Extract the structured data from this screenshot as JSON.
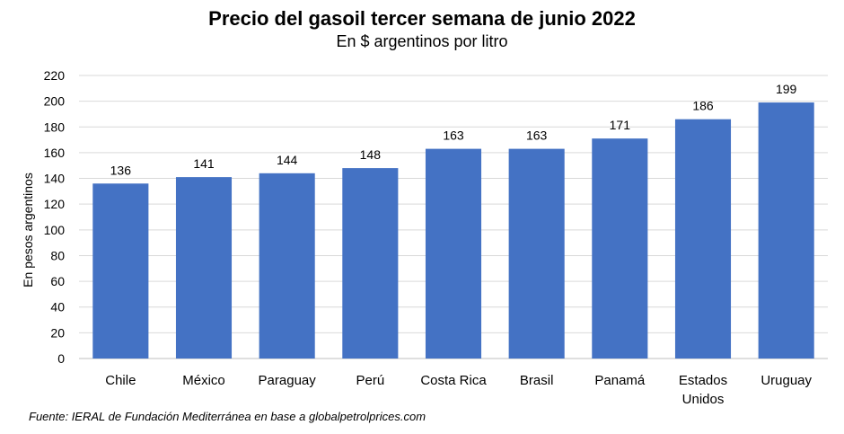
{
  "chart_data": {
    "type": "bar",
    "title": "Precio del gasoil tercer semana de junio 2022",
    "subtitle": "En $ argentinos por litro",
    "ylabel": "En pesos argentinos",
    "xlabel": "",
    "categories": [
      "Chile",
      "México",
      "Paraguay",
      "Perú",
      "Costa Rica",
      "Brasil",
      "Panamá",
      "Estados Unidos",
      "Uruguay"
    ],
    "values": [
      136,
      141,
      144,
      148,
      163,
      163,
      171,
      186,
      199
    ],
    "ylim": [
      0,
      220
    ],
    "yticks": [
      0,
      20,
      40,
      60,
      80,
      100,
      120,
      140,
      160,
      180,
      200,
      220
    ],
    "grid": true,
    "bar_color": "#4472C4",
    "source": "Fuente: IERAL de Fundación  Mediterránea  en base a globalpetrolprices.com"
  }
}
